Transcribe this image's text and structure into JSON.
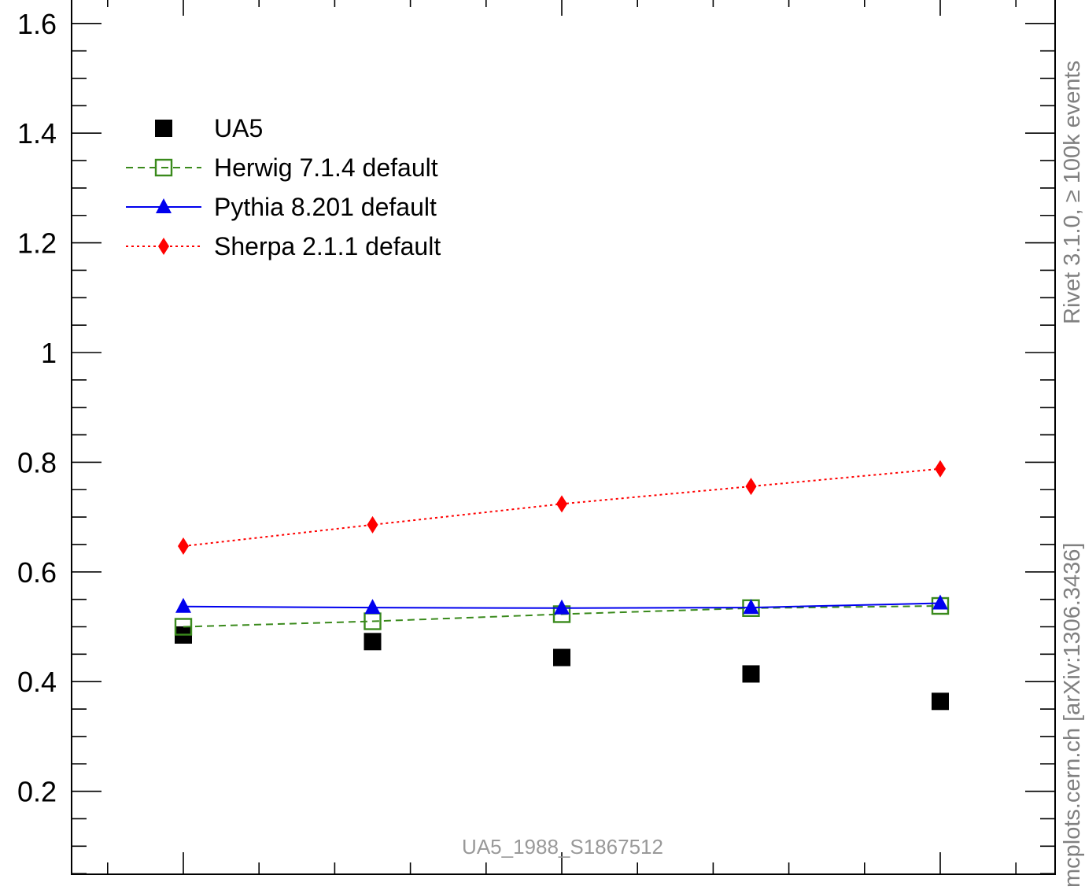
{
  "chart_data": {
    "type": "scatter",
    "x": [
      1,
      2,
      3,
      4,
      5
    ],
    "xlim": [
      0.4,
      5.6
    ],
    "ylim": [
      0,
      1.65
    ],
    "yticks": [
      {
        "value": 0.2,
        "label": "0.2"
      },
      {
        "value": 0.4,
        "label": "0.4"
      },
      {
        "value": 0.6,
        "label": "0.6"
      },
      {
        "value": 0.8,
        "label": "0.8"
      },
      {
        "value": 1.0,
        "label": "1"
      },
      {
        "value": 1.2,
        "label": "1.2"
      },
      {
        "value": 1.4,
        "label": "1.4"
      },
      {
        "value": 1.6,
        "label": "1.6"
      }
    ],
    "y_minor_step": 0.05,
    "x_major_ticks": [
      1,
      3,
      5
    ],
    "x_minor_ticks": [
      0.6,
      1.4,
      1.8,
      2.2,
      2.6,
      3.4,
      3.8,
      4.2,
      4.6,
      5.4
    ],
    "series": [
      {
        "name": "UA5",
        "values": [
          0.485,
          0.473,
          0.444,
          0.414,
          0.364
        ],
        "color": "#000000",
        "marker": "filled-square",
        "line": "none"
      },
      {
        "name": "Herwig 7.1.4 default",
        "values": [
          0.5,
          0.51,
          0.523,
          0.534,
          0.538
        ],
        "color": "#3a8a1c",
        "marker": "open-square",
        "line": "dashed"
      },
      {
        "name": "Pythia 8.201 default",
        "values": [
          0.537,
          0.535,
          0.534,
          0.535,
          0.543
        ],
        "color": "#0000ee",
        "marker": "filled-triangle",
        "line": "solid"
      },
      {
        "name": "Sherpa 2.1.1 default",
        "values": [
          0.647,
          0.686,
          0.724,
          0.756,
          0.788
        ],
        "color": "#ff0000",
        "marker": "filled-diamond",
        "line": "dotted"
      }
    ],
    "legend_position": "upper-left",
    "grid": false,
    "annotation": "UA5_1988_S1867512",
    "side_label_top": "Rivet 3.1.0, ≥ 100k events",
    "side_label_bottom": "mcplots.cern.ch [arXiv:1306.3436]"
  }
}
